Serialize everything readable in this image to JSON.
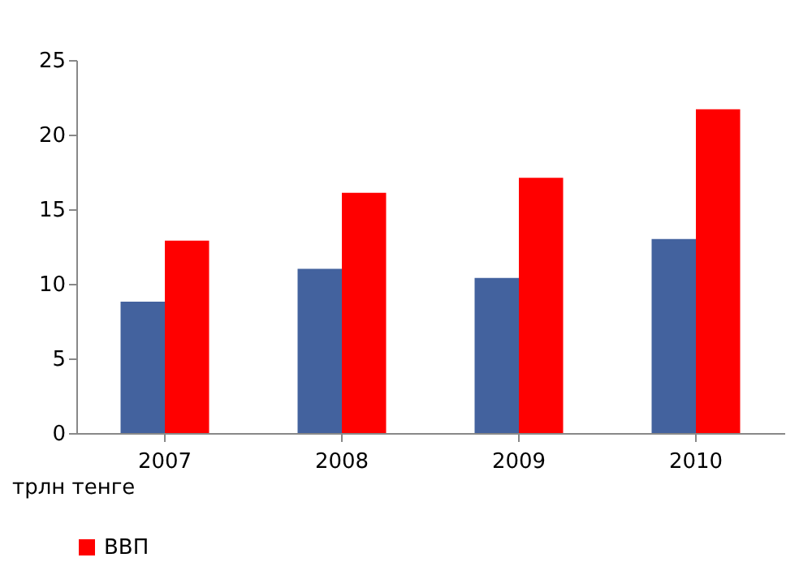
{
  "chart_data": {
    "type": "bar",
    "categories": [
      "2007",
      "2008",
      "2009",
      "2010"
    ],
    "series": [
      {
        "color": "#43629e",
        "values": [
          8.8,
          11,
          10.4,
          13
        ]
      },
      {
        "name": "ВВП",
        "color": "#ff0000",
        "values": [
          12.9,
          16.1,
          17.1,
          21.7
        ]
      }
    ],
    "ylabel": "трлн тенге",
    "ylim": [
      0,
      25
    ],
    "yticks": [
      0,
      5,
      10,
      15,
      20,
      25
    ],
    "grid": false,
    "legend": "bottom"
  }
}
